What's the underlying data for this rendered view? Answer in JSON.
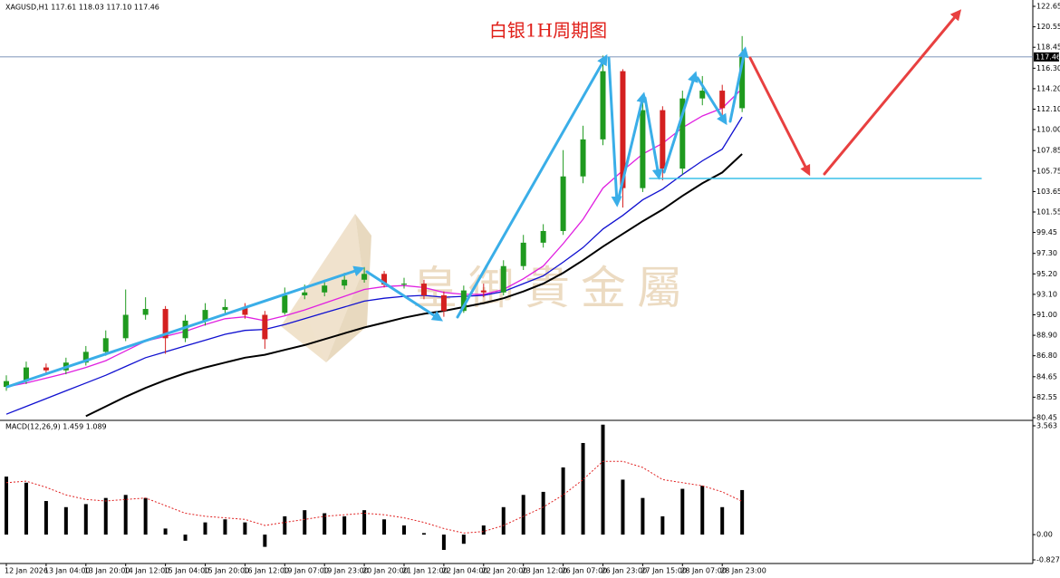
{
  "chart_data": {
    "type": "candlestick",
    "header": "XAGUSD,H1  117.61 118.03 117.10 117.46",
    "title": "白银1H周期图",
    "watermark": "皇御貴金屬",
    "categories": [
      "12 Jan 2026",
      null,
      "13 Jan 04:00",
      null,
      "13 Jan 20:00",
      null,
      "14 Jan 12:00",
      null,
      "15 Jan 04:00",
      null,
      "15 Jan 20:00",
      null,
      "16 Jan 12:00",
      null,
      "19 Jan 07:00",
      null,
      "19 Jan 23:00",
      null,
      "20 Jan 20:00",
      null,
      "21 Jan 12:00",
      null,
      "22 Jan 04:00",
      null,
      "22 Jan 20:00",
      null,
      "23 Jan 12:00",
      null,
      "26 Jan 07:00",
      null,
      "26 Jan 23:00",
      null,
      "27 Jan 15:00",
      null,
      "28 Jan 07:00",
      null,
      "28 Jan 23:00",
      null
    ],
    "open": [
      83.6,
      84.2,
      85.6,
      85.3,
      86.1,
      87.2,
      88.6,
      91.0,
      91.6,
      88.6,
      90.4,
      91.5,
      91.8,
      91.0,
      91.2,
      93.0,
      93.3,
      94.0,
      94.6,
      95.2,
      94.1,
      94.2,
      93.0,
      91.4,
      93.5,
      93.3,
      96.0,
      98.4,
      99.6,
      105.2,
      109.0,
      116.0,
      104.0,
      112.0,
      106.0,
      113.2,
      114.0,
      112.2
    ],
    "high": [
      84.8,
      86.2,
      86.0,
      86.6,
      87.8,
      89.4,
      93.6,
      92.8,
      91.9,
      91.0,
      92.2,
      92.6,
      92.2,
      91.4,
      93.8,
      94.1,
      94.6,
      95.3,
      95.9,
      95.5,
      94.8,
      94.6,
      93.4,
      94.0,
      94.2,
      96.6,
      99.2,
      100.3,
      107.9,
      110.4,
      117.6,
      116.2,
      113.6,
      112.4,
      114.0,
      115.5,
      114.6,
      119.6
    ],
    "low": [
      83.2,
      83.9,
      84.9,
      84.9,
      85.8,
      86.8,
      88.3,
      90.5,
      87.0,
      88.2,
      89.9,
      91.0,
      90.6,
      87.5,
      91.0,
      92.6,
      92.9,
      93.6,
      94.3,
      93.8,
      93.7,
      92.6,
      90.8,
      91.2,
      92.8,
      93.0,
      95.6,
      97.9,
      99.2,
      104.5,
      108.4,
      102.0,
      103.6,
      104.8,
      105.4,
      112.5,
      111.3,
      111.8
    ],
    "close": [
      84.2,
      85.6,
      85.3,
      86.1,
      87.2,
      88.6,
      91.0,
      91.6,
      88.6,
      90.4,
      91.5,
      91.8,
      91.0,
      88.5,
      93.0,
      93.3,
      94.0,
      94.6,
      95.2,
      94.1,
      94.2,
      93.0,
      91.4,
      93.5,
      93.3,
      96.0,
      98.4,
      99.6,
      105.2,
      109.0,
      116.0,
      104.0,
      112.0,
      106.0,
      113.2,
      114.0,
      112.2,
      117.46
    ],
    "up_color": "#1f9a1f",
    "down_color": "#d42020",
    "moving_averages": [
      {
        "color": "#e020e0",
        "values": [
          83.6,
          84.0,
          84.5,
          85.0,
          85.6,
          86.3,
          87.3,
          88.3,
          88.8,
          89.3,
          90.0,
          90.6,
          90.8,
          90.4,
          90.9,
          91.5,
          92.2,
          92.9,
          93.6,
          93.9,
          94.0,
          93.8,
          93.3,
          93.1,
          93.1,
          93.6,
          94.7,
          96.0,
          98.3,
          100.8,
          104.0,
          105.8,
          107.5,
          108.6,
          110.2,
          111.4,
          112.2,
          114.2
        ]
      },
      {
        "color": "#1010d0",
        "values": [
          80.8,
          81.6,
          82.4,
          83.2,
          84.0,
          84.8,
          85.7,
          86.6,
          87.2,
          87.8,
          88.4,
          89.0,
          89.4,
          89.5,
          90.0,
          90.6,
          91.2,
          91.8,
          92.4,
          92.7,
          92.9,
          93.0,
          92.8,
          92.9,
          93.0,
          93.4,
          94.2,
          95.0,
          96.4,
          97.9,
          99.8,
          101.2,
          102.8,
          103.9,
          105.4,
          106.8,
          108.0,
          111.3
        ]
      },
      {
        "color": "#000000",
        "values": [
          null,
          null,
          null,
          null,
          80.6,
          81.6,
          82.6,
          83.5,
          84.3,
          85.0,
          85.6,
          86.1,
          86.6,
          86.9,
          87.4,
          87.9,
          88.5,
          89.1,
          89.7,
          90.2,
          90.7,
          91.1,
          91.4,
          91.8,
          92.2,
          92.7,
          93.4,
          94.2,
          95.3,
          96.6,
          98.0,
          99.3,
          100.6,
          101.8,
          103.2,
          104.5,
          105.6,
          107.5
        ]
      }
    ],
    "ylim": [
      80.45,
      122.65
    ],
    "yticks": [
      122.65,
      120.55,
      118.45,
      {
        "value": 116.3,
        "label": "116.30"
      },
      {
        "value": 114.2,
        "label": "114.20"
      },
      {
        "value": 112.1,
        "label": "112.10"
      },
      {
        "value": 110,
        "label": "110.00"
      },
      107.85,
      105.75,
      103.65,
      101.55,
      99.45,
      {
        "value": 97.3,
        "label": "97.30"
      },
      {
        "value": 95.2,
        "label": "95.20"
      },
      {
        "value": 93.1,
        "label": "93.10"
      },
      {
        "value": 91,
        "label": "91.00"
      },
      {
        "value": 88.9,
        "label": "88.90"
      },
      {
        "value": 86.8,
        "label": "86.80"
      },
      84.65,
      82.55,
      80.45
    ],
    "current_price": 117.46,
    "macd": {
      "label": "MACD(12,26,9) 1.459 1.089",
      "histogram": [
        1.9,
        1.7,
        1.1,
        0.9,
        1.0,
        1.2,
        1.3,
        1.2,
        0.2,
        -0.2,
        0.4,
        0.5,
        0.4,
        -0.4,
        0.6,
        0.8,
        0.7,
        0.6,
        0.8,
        0.5,
        0.3,
        0.05,
        -0.5,
        -0.3,
        0.3,
        0.9,
        1.3,
        1.4,
        2.2,
        3.0,
        3.6,
        1.8,
        1.2,
        0.6,
        1.5,
        1.6,
        0.9,
        1.459
      ],
      "signal": [
        1.7,
        1.75,
        1.55,
        1.3,
        1.15,
        1.1,
        1.15,
        1.2,
        0.95,
        0.7,
        0.6,
        0.55,
        0.5,
        0.3,
        0.4,
        0.5,
        0.6,
        0.65,
        0.7,
        0.65,
        0.55,
        0.4,
        0.2,
        0.05,
        0.1,
        0.3,
        0.6,
        0.9,
        1.3,
        1.8,
        2.4,
        2.4,
        2.2,
        1.8,
        1.7,
        1.6,
        1.4,
        1.089
      ],
      "hist_color": "#000000",
      "signal_color": "#e02020",
      "ylim": [
        -0.827,
        3.563
      ],
      "yticks": [
        3.563,
        {
          "value": 0,
          "label": "0.00"
        },
        -0.827
      ]
    }
  }
}
